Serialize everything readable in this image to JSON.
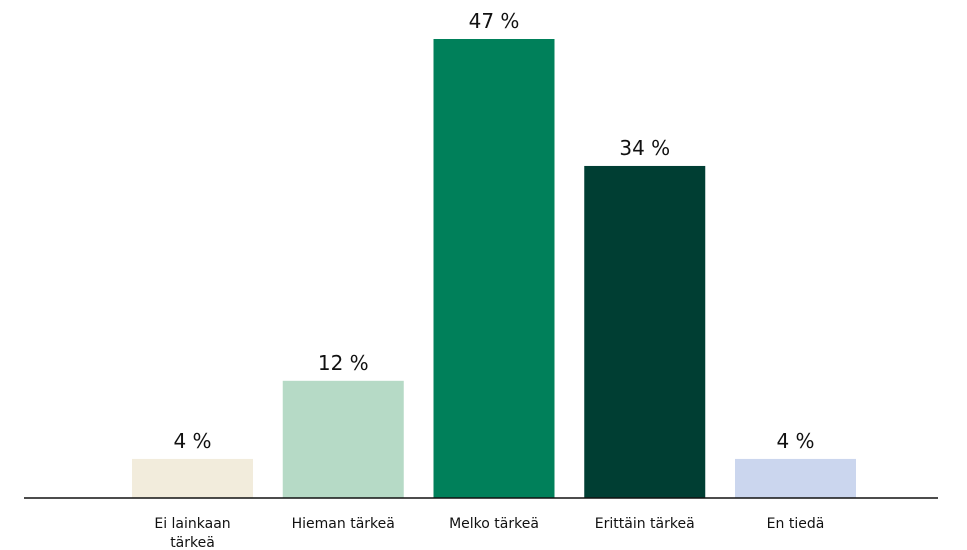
{
  "chart_data": {
    "type": "bar",
    "categories": [
      [
        "Ei lainkaan",
        "tärkeä"
      ],
      [
        "Hieman tärkeä"
      ],
      [
        "Melko tärkeä"
      ],
      [
        "Erittäin tärkeä"
      ],
      [
        "En tiedä"
      ]
    ],
    "values": [
      4,
      12,
      47,
      34,
      4
    ],
    "value_labels": [
      "4 %",
      "12 %",
      "47 %",
      "34 %",
      "4 %"
    ],
    "colors": [
      "#f2ecdc",
      "#b6dac6",
      "#00805a",
      "#003e33",
      "#cbd6ee"
    ],
    "title": "",
    "xlabel": "",
    "ylabel": "",
    "ylim": [
      0,
      47
    ],
    "grid": false,
    "axis_line_color": "#111111"
  }
}
